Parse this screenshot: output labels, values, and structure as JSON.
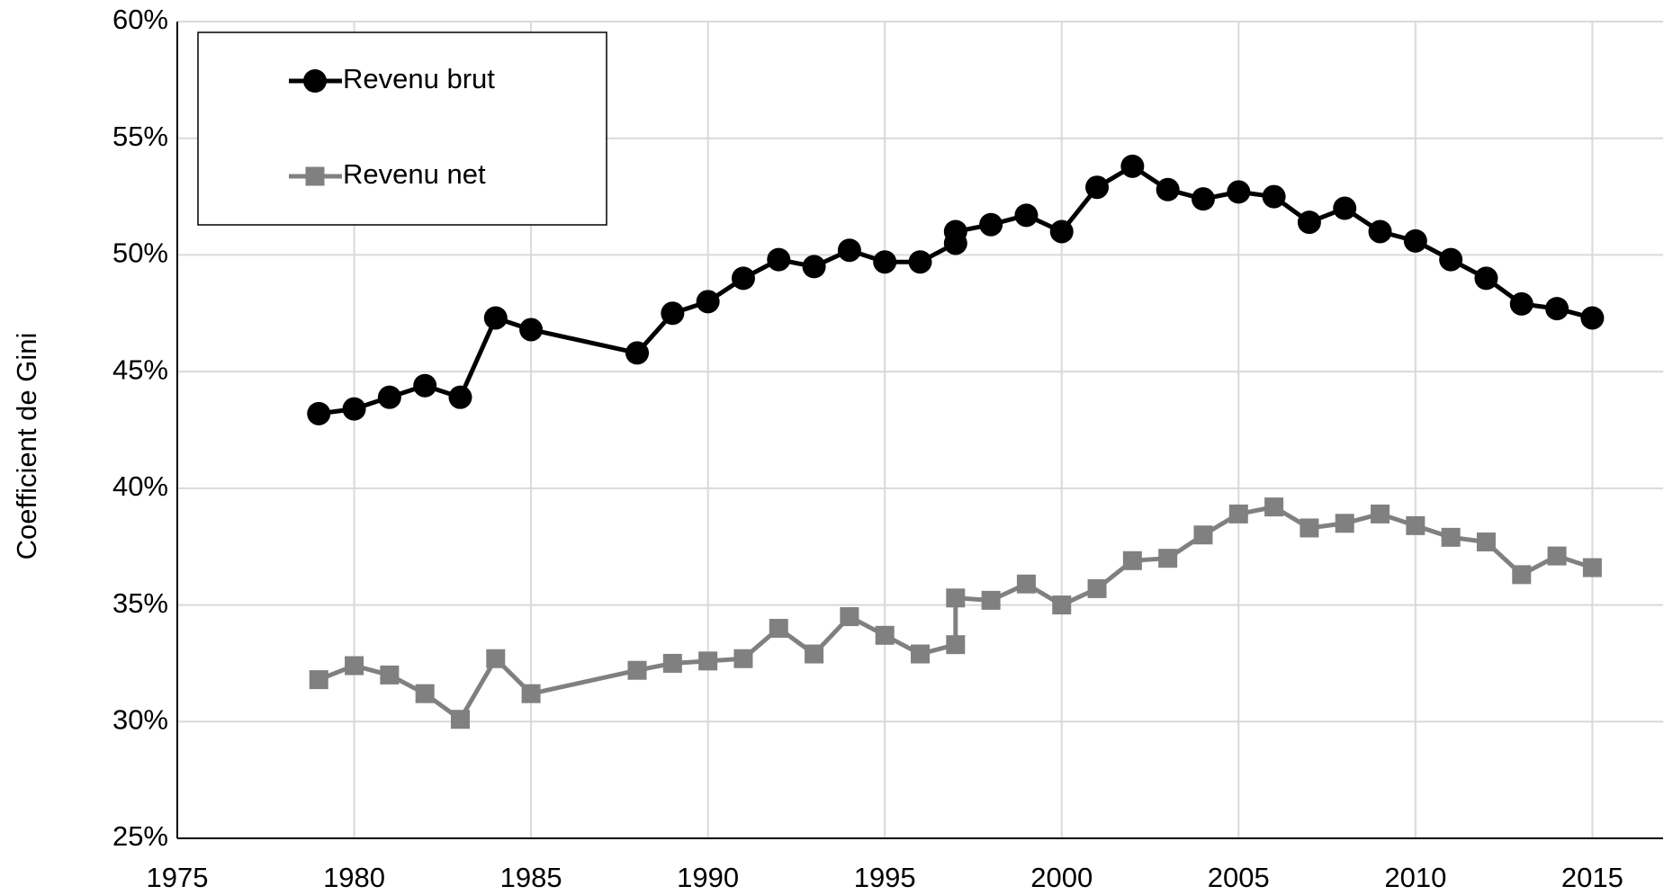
{
  "chart_data": {
    "type": "line",
    "y_label": "Coefficient de Gini",
    "x": [
      1979,
      1980,
      1981,
      1982,
      1983,
      1984,
      1985,
      1988,
      1989,
      1990,
      1991,
      1992,
      1993,
      1994,
      1995,
      1996,
      1997,
      1997,
      1998,
      1999,
      2000,
      2001,
      2002,
      2003,
      2004,
      2005,
      2006,
      2007,
      2008,
      2009,
      2010,
      2011,
      2012,
      2013,
      2014,
      2015
    ],
    "series": [
      {
        "name": "Revenu brut",
        "color": "#000000",
        "marker": "circle",
        "values": [
          43.2,
          43.4,
          43.9,
          44.4,
          43.9,
          47.3,
          46.8,
          45.8,
          47.5,
          48.0,
          49.0,
          49.8,
          49.5,
          50.2,
          49.7,
          49.7,
          50.5,
          51.0,
          51.3,
          51.7,
          51.0,
          52.9,
          53.8,
          52.8,
          52.4,
          52.7,
          52.5,
          51.4,
          52.0,
          51.0,
          50.6,
          49.8,
          49.0,
          47.9,
          47.7,
          47.3
        ]
      },
      {
        "name": "Revenu net",
        "color": "#808080",
        "marker": "square",
        "values": [
          31.8,
          32.4,
          32.0,
          31.2,
          30.1,
          32.7,
          31.2,
          32.2,
          32.5,
          32.6,
          32.7,
          34.0,
          32.9,
          34.5,
          33.7,
          32.9,
          33.3,
          35.3,
          35.2,
          35.9,
          35.0,
          35.7,
          36.9,
          37.0,
          38.0,
          38.9,
          39.2,
          38.3,
          38.5,
          38.9,
          38.4,
          37.9,
          37.7,
          36.3,
          37.1,
          36.6
        ]
      }
    ],
    "xlim": [
      1975,
      2017
    ],
    "xticks": [
      1975,
      1980,
      1985,
      1990,
      1995,
      2000,
      2005,
      2010,
      2015
    ],
    "ylim": [
      25,
      60
    ],
    "yticks": [
      {
        "value": 25,
        "label": "25%"
      },
      {
        "value": 30,
        "label": "30%"
      },
      {
        "value": 35,
        "label": "35%"
      },
      {
        "value": 40,
        "label": "40%"
      },
      {
        "value": 45,
        "label": "45%"
      },
      {
        "value": 50,
        "label": "50%"
      },
      {
        "value": 55,
        "label": "55%"
      },
      {
        "value": 60,
        "label": "60%"
      }
    ],
    "grid": true,
    "legend": "upper left"
  }
}
